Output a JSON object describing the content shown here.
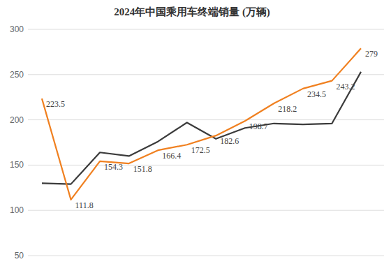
{
  "chart_data": {
    "type": "line",
    "title": "2024年中国乘用车终端销量 (万辆)",
    "categories": [
      null,
      null,
      null,
      null,
      null,
      null,
      null,
      null,
      null,
      null,
      null,
      null
    ],
    "series": [
      {
        "color": "#3b3b3b",
        "values": [
          130,
          129,
          164,
          160,
          176,
          197,
          179,
          191,
          196,
          195,
          196,
          253
        ]
      },
      {
        "color": "#f08020",
        "data_labels": true,
        "values": [
          223.5,
          111.8,
          154.3,
          151.8,
          166.4,
          172.5,
          182.6,
          198.7,
          218.2,
          234.5,
          243.2,
          279
        ]
      }
    ],
    "ylim": [
      50,
      300
    ],
    "yticks": [
      50,
      100,
      150,
      200,
      250,
      300
    ],
    "grid": true
  }
}
